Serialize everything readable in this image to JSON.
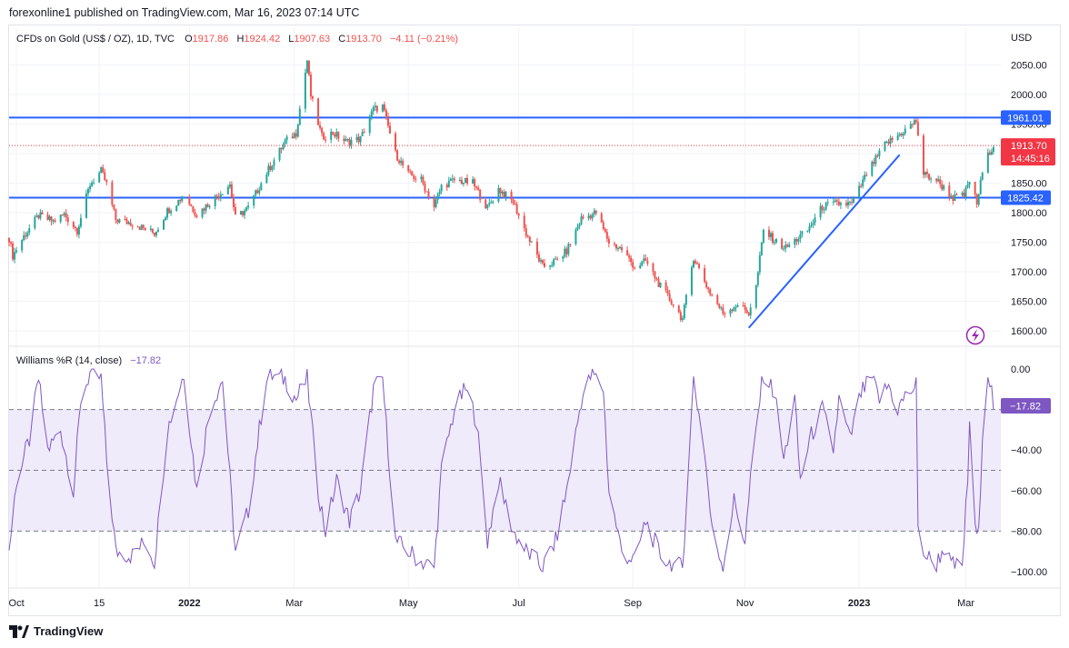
{
  "publish_line": "forexonline1 published on TradingView.com, Mar 16, 2023 07:14 UTC",
  "footer_brand": "TradingView",
  "colors": {
    "up": "#26a69a",
    "down": "#ef5350",
    "hline": "#2962ff",
    "wr": "#7e57c2",
    "wr_band": "#efebfa",
    "price_label": "#f23645"
  },
  "legend": {
    "symbol": "CFDs on Gold (US$ / OZ), 1D, TVC",
    "o_label": "O",
    "o_val": "1917.86",
    "h_label": "H",
    "h_val": "1924.42",
    "l_label": "L",
    "l_val": "1907.63",
    "c_label": "C",
    "c_val": "1913.70",
    "chg": "−4.11 (−0.21%)"
  },
  "indicator_legend": {
    "name": "Williams %R (14, close)",
    "value": "−17.82"
  },
  "price_axis": {
    "currency": "USD",
    "ticks": [
      "2050.00",
      "2000.00",
      "1950.00",
      "1900.00",
      "1850.00",
      "1800.00",
      "1750.00",
      "1700.00",
      "1650.00",
      "1600.00"
    ],
    "labels": [
      {
        "text": "1961.01",
        "kind": "hline"
      },
      {
        "text": "1913.70",
        "sub": "14:45:16",
        "kind": "last"
      },
      {
        "text": "1825.42",
        "kind": "hline"
      }
    ]
  },
  "wr_axis": {
    "ticks": [
      "0.00",
      "−40.00",
      "−60.00",
      "−80.00",
      "−100.00"
    ],
    "value_label": "−17.82"
  },
  "time_axis": [
    "Oct",
    "15",
    "2022",
    "Mar",
    "May",
    "Jul",
    "Sep",
    "Nov",
    "2023",
    "Mar"
  ],
  "chart_data": [
    {
      "type": "candlestick",
      "title": "CFDs on Gold (US$ / OZ), 1D, TVC",
      "ylim": [
        1580,
        2080
      ],
      "x_range": [
        "2021-09-27",
        "2023-03-20"
      ],
      "horizontal_lines": [
        1961.01,
        1825.42
      ],
      "last_price": 1913.7,
      "trendline": {
        "from": [
          "2022-11-03",
          1605
        ],
        "to": [
          "2023-01-24",
          1898
        ]
      },
      "anchors": [
        [
          "2021-09-27",
          1757
        ],
        [
          "2021-09-29",
          1727
        ],
        [
          "2021-10-05",
          1760
        ],
        [
          "2021-10-13",
          1795
        ],
        [
          "2021-10-21",
          1785
        ],
        [
          "2021-10-27",
          1797
        ],
        [
          "2021-11-03",
          1770
        ],
        [
          "2021-11-10",
          1848
        ],
        [
          "2021-11-16",
          1870
        ],
        [
          "2021-11-19",
          1848
        ],
        [
          "2021-11-24",
          1788
        ],
        [
          "2021-12-03",
          1782
        ],
        [
          "2021-12-15",
          1765
        ],
        [
          "2021-12-22",
          1803
        ],
        [
          "2021-12-31",
          1829
        ],
        [
          "2022-01-07",
          1797
        ],
        [
          "2022-01-14",
          1817
        ],
        [
          "2022-01-25",
          1848
        ],
        [
          "2022-01-28",
          1791
        ],
        [
          "2022-02-04",
          1808
        ],
        [
          "2022-02-14",
          1868
        ],
        [
          "2022-02-24",
          1920
        ],
        [
          "2022-03-02",
          1935
        ],
        [
          "2022-03-08",
          2058
        ],
        [
          "2022-03-10",
          1998
        ],
        [
          "2022-03-16",
          1928
        ],
        [
          "2022-03-22",
          1935
        ],
        [
          "2022-03-29",
          1920
        ],
        [
          "2022-04-06",
          1925
        ],
        [
          "2022-04-13",
          1975
        ],
        [
          "2022-04-18",
          1980
        ],
        [
          "2022-04-25",
          1900
        ],
        [
          "2022-05-02",
          1865
        ],
        [
          "2022-05-09",
          1855
        ],
        [
          "2022-05-16",
          1810
        ],
        [
          "2022-05-20",
          1845
        ],
        [
          "2022-05-27",
          1855
        ],
        [
          "2022-06-06",
          1850
        ],
        [
          "2022-06-14",
          1808
        ],
        [
          "2022-06-20",
          1840
        ],
        [
          "2022-06-28",
          1818
        ],
        [
          "2022-07-05",
          1765
        ],
        [
          "2022-07-14",
          1708
        ],
        [
          "2022-07-21",
          1718
        ],
        [
          "2022-07-27",
          1735
        ],
        [
          "2022-08-04",
          1790
        ],
        [
          "2022-08-12",
          1800
        ],
        [
          "2022-08-19",
          1750
        ],
        [
          "2022-08-26",
          1738
        ],
        [
          "2022-09-02",
          1708
        ],
        [
          "2022-09-08",
          1718
        ],
        [
          "2022-09-16",
          1675
        ],
        [
          "2022-09-23",
          1645
        ],
        [
          "2022-09-28",
          1620
        ],
        [
          "2022-10-04",
          1725
        ],
        [
          "2022-10-12",
          1670
        ],
        [
          "2022-10-20",
          1630
        ],
        [
          "2022-10-28",
          1645
        ],
        [
          "2022-11-03",
          1630
        ],
        [
          "2022-11-07",
          1675
        ],
        [
          "2022-11-11",
          1770
        ],
        [
          "2022-11-18",
          1750
        ],
        [
          "2022-11-23",
          1740
        ],
        [
          "2022-12-05",
          1770
        ],
        [
          "2022-12-13",
          1810
        ],
        [
          "2022-12-20",
          1815
        ],
        [
          "2022-12-29",
          1815
        ],
        [
          "2023-01-06",
          1865
        ],
        [
          "2023-01-16",
          1915
        ],
        [
          "2023-01-25",
          1935
        ],
        [
          "2023-02-02",
          1955
        ],
        [
          "2023-02-06",
          1865
        ],
        [
          "2023-02-13",
          1855
        ],
        [
          "2023-02-22",
          1825
        ],
        [
          "2023-02-28",
          1828
        ],
        [
          "2023-03-03",
          1855
        ],
        [
          "2023-03-07",
          1815
        ],
        [
          "2023-03-10",
          1868
        ],
        [
          "2023-03-14",
          1905
        ],
        [
          "2023-03-16",
          1913.7
        ]
      ]
    },
    {
      "type": "line",
      "title": "Williams %R (14, close)",
      "ylim": [
        -100,
        0
      ],
      "levels": [
        -20,
        -50,
        -80
      ],
      "x_range": [
        "2021-09-27",
        "2023-03-20"
      ],
      "anchors": [
        [
          "2021-09-27",
          -90
        ],
        [
          "2021-10-01",
          -55
        ],
        [
          "2021-10-08",
          -35
        ],
        [
          "2021-10-13",
          -5
        ],
        [
          "2021-10-18",
          -40
        ],
        [
          "2021-10-25",
          -30
        ],
        [
          "2021-11-01",
          -60
        ],
        [
          "2021-11-05",
          -15
        ],
        [
          "2021-11-10",
          -2
        ],
        [
          "2021-11-16",
          -5
        ],
        [
          "2021-11-19",
          -45
        ],
        [
          "2021-11-24",
          -90
        ],
        [
          "2021-12-03",
          -92
        ],
        [
          "2021-12-10",
          -85
        ],
        [
          "2021-12-15",
          -95
        ],
        [
          "2021-12-22",
          -30
        ],
        [
          "2021-12-31",
          -2
        ],
        [
          "2022-01-07",
          -60
        ],
        [
          "2022-01-14",
          -20
        ],
        [
          "2022-01-21",
          -5
        ],
        [
          "2022-01-28",
          -90
        ],
        [
          "2022-02-04",
          -70
        ],
        [
          "2022-02-14",
          -3
        ],
        [
          "2022-02-24",
          -5
        ],
        [
          "2022-03-02",
          -15
        ],
        [
          "2022-03-08",
          -5
        ],
        [
          "2022-03-14",
          -60
        ],
        [
          "2022-03-18",
          -80
        ],
        [
          "2022-03-24",
          -55
        ],
        [
          "2022-03-31",
          -75
        ],
        [
          "2022-04-06",
          -60
        ],
        [
          "2022-04-13",
          -10
        ],
        [
          "2022-04-18",
          -5
        ],
        [
          "2022-04-25",
          -85
        ],
        [
          "2022-05-02",
          -90
        ],
        [
          "2022-05-09",
          -95
        ],
        [
          "2022-05-16",
          -98
        ],
        [
          "2022-05-20",
          -50
        ],
        [
          "2022-05-27",
          -20
        ],
        [
          "2022-06-02",
          -10
        ],
        [
          "2022-06-08",
          -25
        ],
        [
          "2022-06-14",
          -85
        ],
        [
          "2022-06-20",
          -55
        ],
        [
          "2022-06-28",
          -80
        ],
        [
          "2022-07-05",
          -90
        ],
        [
          "2022-07-14",
          -98
        ],
        [
          "2022-07-21",
          -85
        ],
        [
          "2022-07-27",
          -60
        ],
        [
          "2022-08-04",
          -15
        ],
        [
          "2022-08-10",
          -2
        ],
        [
          "2022-08-16",
          -10
        ],
        [
          "2022-08-19",
          -60
        ],
        [
          "2022-08-26",
          -90
        ],
        [
          "2022-09-02",
          -95
        ],
        [
          "2022-09-08",
          -75
        ],
        [
          "2022-09-16",
          -92
        ],
        [
          "2022-09-23",
          -97
        ],
        [
          "2022-09-28",
          -98
        ],
        [
          "2022-10-04",
          -5
        ],
        [
          "2022-10-10",
          -40
        ],
        [
          "2022-10-14",
          -80
        ],
        [
          "2022-10-20",
          -97
        ],
        [
          "2022-10-26",
          -65
        ],
        [
          "2022-11-01",
          -85
        ],
        [
          "2022-11-04",
          -55
        ],
        [
          "2022-11-09",
          -15
        ],
        [
          "2022-11-11",
          -2
        ],
        [
          "2022-11-17",
          -12
        ],
        [
          "2022-11-22",
          -45
        ],
        [
          "2022-11-28",
          -15
        ],
        [
          "2022-12-01",
          -55
        ],
        [
          "2022-12-06",
          -35
        ],
        [
          "2022-12-13",
          -20
        ],
        [
          "2022-12-19",
          -40
        ],
        [
          "2022-12-22",
          -15
        ],
        [
          "2022-12-28",
          -35
        ],
        [
          "2023-01-03",
          -12
        ],
        [
          "2023-01-09",
          -5
        ],
        [
          "2023-01-13",
          -15
        ],
        [
          "2023-01-18",
          -8
        ],
        [
          "2023-01-23",
          -20
        ],
        [
          "2023-01-26",
          -15
        ],
        [
          "2023-02-02",
          -8
        ],
        [
          "2023-02-03",
          -80
        ],
        [
          "2023-02-07",
          -92
        ],
        [
          "2023-02-13",
          -96
        ],
        [
          "2023-02-17",
          -88
        ],
        [
          "2023-02-21",
          -97
        ],
        [
          "2023-02-27",
          -98
        ],
        [
          "2023-03-02",
          -55
        ],
        [
          "2023-03-03",
          -25
        ],
        [
          "2023-03-06",
          -80
        ],
        [
          "2023-03-08",
          -82
        ],
        [
          "2023-03-10",
          -30
        ],
        [
          "2023-03-13",
          -2
        ],
        [
          "2023-03-14",
          -5
        ],
        [
          "2023-03-16",
          -17.82
        ]
      ]
    }
  ]
}
